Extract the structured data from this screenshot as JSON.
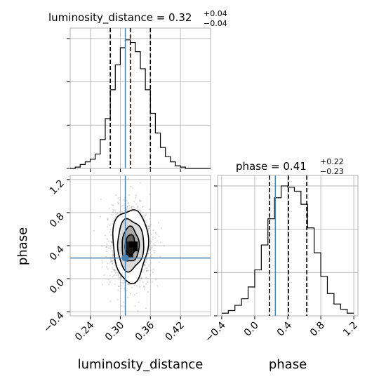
{
  "chart_data": {
    "type": "corner",
    "parameters": [
      "luminosity_distance",
      "phase"
    ],
    "truths": {
      "luminosity_distance": 0.31,
      "phase": 0.25
    },
    "truth_color": "#4682b4",
    "titles": {
      "luminosity_distance": {
        "prefix": "luminosity_distance = ",
        "median": "0.32",
        "plus": "+0.04",
        "minus": "−0.04"
      },
      "phase": {
        "prefix": "phase = ",
        "median": "0.41",
        "plus": "+0.22",
        "minus": "−0.23"
      }
    },
    "axis_labels": {
      "x_bottom_left": "luminosity_distance",
      "x_bottom_right": "phase",
      "y_lower_left": "phase"
    },
    "panels": [
      {
        "id": "hist-luminosity-distance",
        "type": "histogram",
        "xlim": [
          0.2,
          0.48
        ],
        "ymax": 1.0,
        "x_ticks": [
          0.24,
          0.3,
          0.36,
          0.42
        ],
        "quantiles": [
          0.28,
          0.32,
          0.36
        ],
        "bin_edges": [
          0.2,
          0.21,
          0.22,
          0.23,
          0.24,
          0.25,
          0.26,
          0.27,
          0.28,
          0.29,
          0.3,
          0.31,
          0.32,
          0.33,
          0.34,
          0.35,
          0.36,
          0.37,
          0.38,
          0.39,
          0.4,
          0.41,
          0.42,
          0.43,
          0.44,
          0.45,
          0.46,
          0.47,
          0.48
        ],
        "counts": [
          0.0,
          0.01,
          0.03,
          0.05,
          0.07,
          0.11,
          0.22,
          0.38,
          0.6,
          0.79,
          0.92,
          0.98,
          0.96,
          0.89,
          0.76,
          0.6,
          0.42,
          0.27,
          0.16,
          0.09,
          0.05,
          0.02,
          0.01,
          0.0,
          0.0,
          0.0,
          0.0,
          0.0
        ]
      },
      {
        "id": "hist-phase",
        "type": "histogram",
        "xlim": [
          -0.45,
          1.25
        ],
        "ymax": 1.0,
        "x_ticks": [
          -0.4,
          0.0,
          0.4,
          0.8,
          1.2
        ],
        "x_tick_labels": [
          "−0.4",
          "0.0",
          "0.4",
          "0.8",
          "1.2"
        ],
        "quantiles": [
          0.18,
          0.41,
          0.63
        ],
        "bin_edges": [
          -0.4,
          -0.32,
          -0.24,
          -0.16,
          -0.08,
          0.0,
          0.08,
          0.16,
          0.24,
          0.32,
          0.4,
          0.48,
          0.56,
          0.64,
          0.72,
          0.8,
          0.88,
          0.96,
          1.04,
          1.12,
          1.2
        ],
        "counts": [
          0.02,
          0.04,
          0.08,
          0.13,
          0.22,
          0.35,
          0.54,
          0.74,
          0.9,
          0.99,
          0.98,
          0.95,
          0.85,
          0.67,
          0.48,
          0.3,
          0.17,
          0.09,
          0.05,
          0.02
        ]
      },
      {
        "id": "2d-phase-vs-luminosity-distance",
        "type": "density2d",
        "xlim": [
          0.2,
          0.48
        ],
        "ylim": [
          -0.45,
          1.25
        ],
        "x_ticks": [
          0.24,
          0.3,
          0.36,
          0.42
        ],
        "y_ticks": [
          -0.4,
          0.0,
          0.4,
          0.8,
          1.2
        ],
        "y_tick_labels": [
          "−0.4",
          "0.0",
          "0.4",
          "0.8",
          "1.2"
        ],
        "center": [
          0.32,
          0.41
        ],
        "contour_radii": [
          {
            "x": 0.035,
            "y": 0.44
          },
          {
            "x": 0.026,
            "y": 0.31
          },
          {
            "x": 0.017,
            "y": 0.21
          },
          {
            "x": 0.01,
            "y": 0.12
          }
        ]
      }
    ],
    "grid": true
  }
}
